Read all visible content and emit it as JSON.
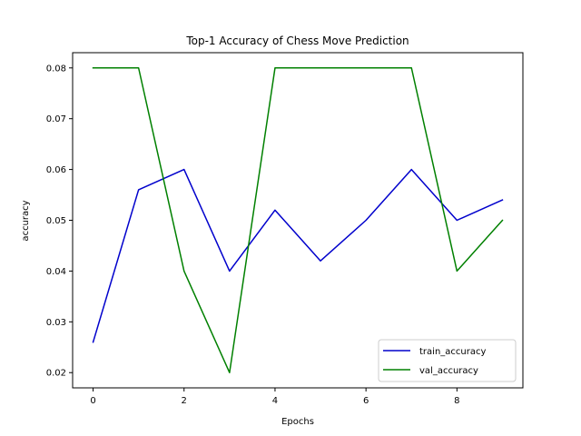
{
  "chart_data": {
    "type": "line",
    "title": "Top-1 Accuracy of Chess Move Prediction",
    "xlabel": "Epochs",
    "ylabel": "accuracy",
    "x": [
      0,
      1,
      2,
      3,
      4,
      5,
      6,
      7,
      8,
      9
    ],
    "xlim": [
      -0.45,
      9.45
    ],
    "ylim": [
      0.017,
      0.083
    ],
    "xticks": [
      0,
      2,
      4,
      6,
      8
    ],
    "xtick_labels": [
      "0",
      "2",
      "4",
      "6",
      "8"
    ],
    "yticks": [
      0.02,
      0.03,
      0.04,
      0.05,
      0.06,
      0.07,
      0.08
    ],
    "ytick_labels": [
      "0.02",
      "0.03",
      "0.04",
      "0.05",
      "0.06",
      "0.07",
      "0.08"
    ],
    "grid": false,
    "legend_position": "lower-right",
    "series": [
      {
        "name": "train_accuracy",
        "color": "#0000cc",
        "values": [
          0.026,
          0.056,
          0.06,
          0.04,
          0.052,
          0.042,
          0.05,
          0.06,
          0.05,
          0.054
        ]
      },
      {
        "name": "val_accuracy",
        "color": "#008000",
        "values": [
          0.08,
          0.08,
          0.04,
          0.02,
          0.08,
          0.08,
          0.08,
          0.08,
          0.04,
          0.05
        ]
      }
    ]
  }
}
